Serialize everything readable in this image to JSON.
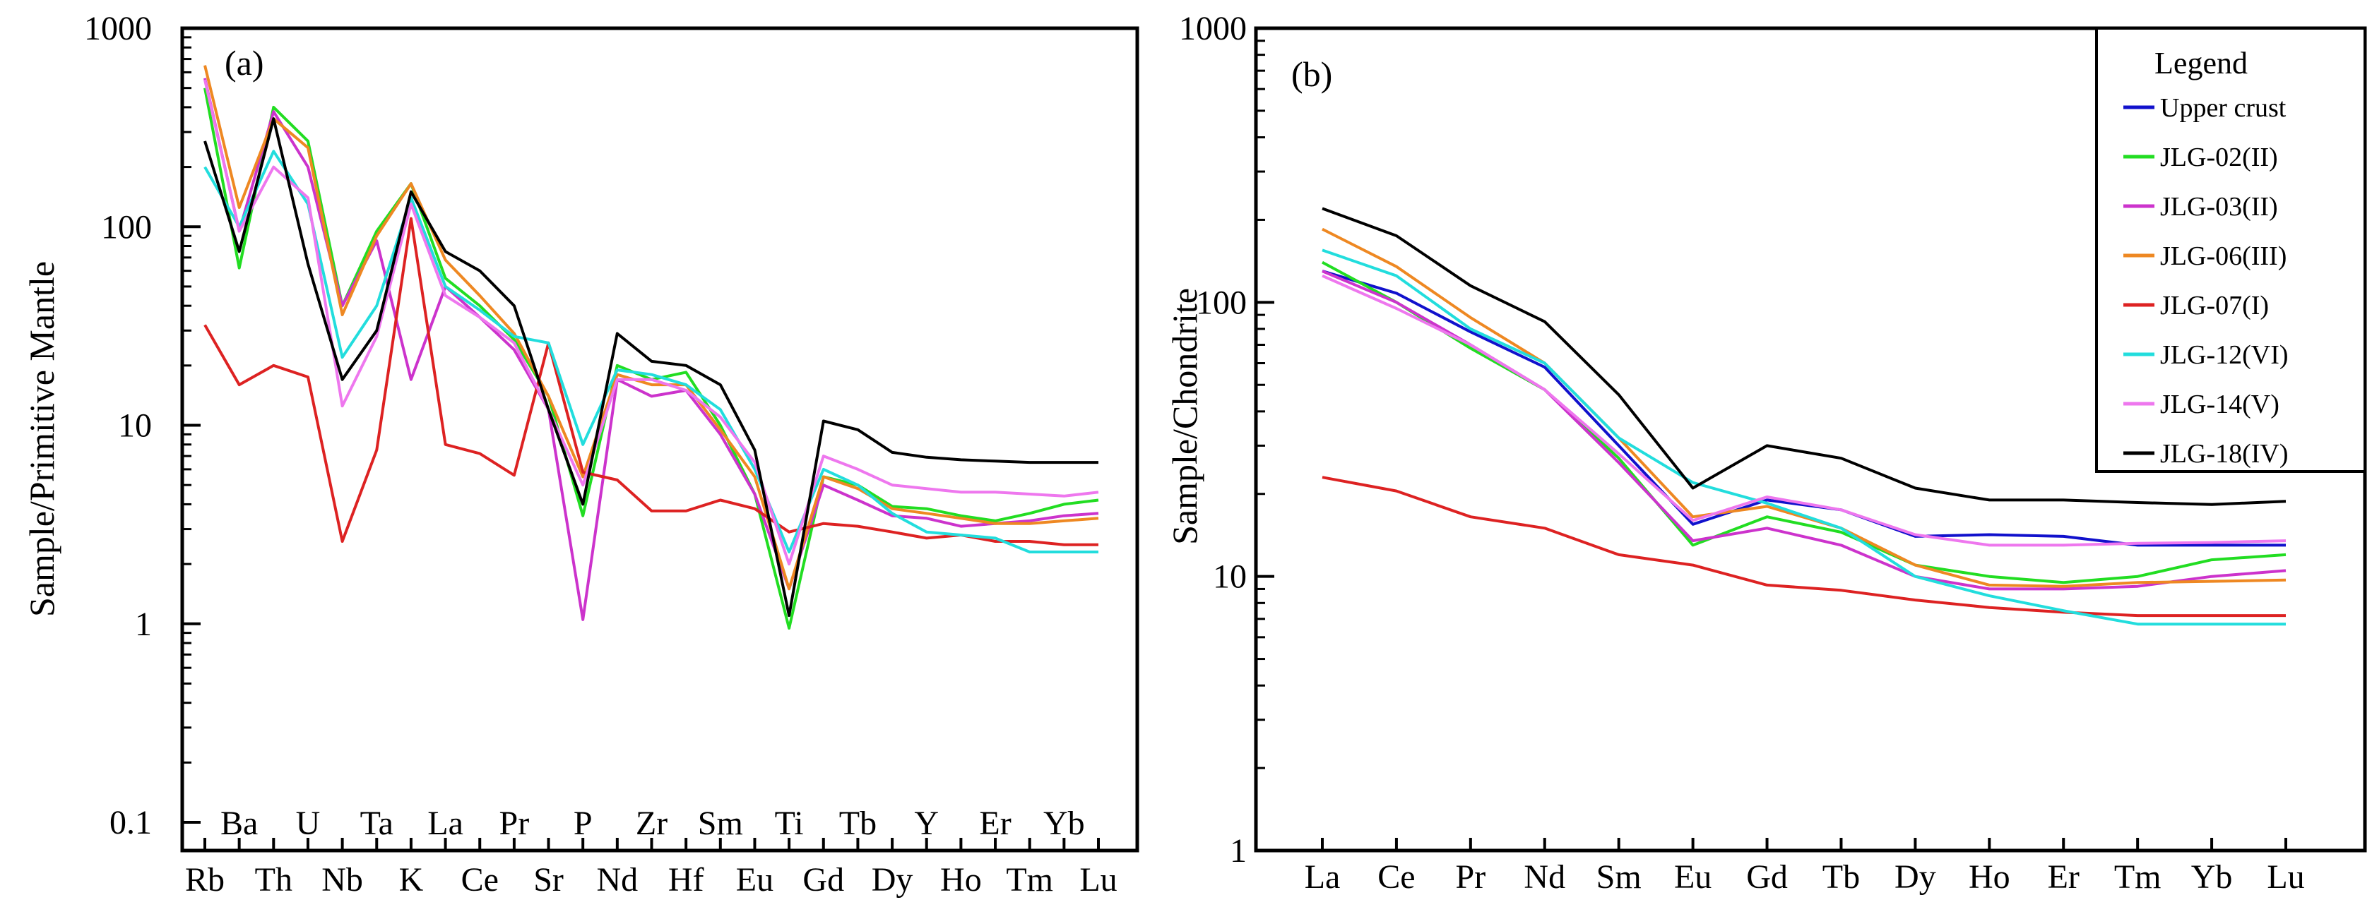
{
  "chart_data": [
    {
      "id": "a",
      "type": "line",
      "panel_label": "(a)",
      "ylabel": "Sample/Primitive Mantle",
      "yscale": "log",
      "ylim": [
        0.1,
        1000
      ],
      "yticks": [
        "0.1",
        "1",
        "10",
        "100",
        "1000"
      ],
      "categories": [
        "Rb",
        "Ba",
        "Th",
        "U",
        "Nb",
        "Ta",
        "K",
        "La",
        "Ce",
        "Pr",
        "Sr",
        "P",
        "Nd",
        "Zr",
        "Hf",
        "Sm",
        "Eu",
        "Ti",
        "Gd",
        "Tb",
        "Dy",
        "Y",
        "Ho",
        "Er",
        "Tm",
        "Yb",
        "Lu"
      ],
      "category_label_color": [
        "#000000",
        "#000000",
        "#000000",
        "#000000",
        "#000000",
        "#000000",
        "#000000",
        "#000000",
        "#000000",
        "#000000",
        "#000000",
        "#000000",
        "#000000",
        "#000000",
        "#000000",
        "#000000",
        "#000000",
        "#555555",
        "#000000",
        "#000000",
        "#000000",
        "#555555",
        "#555555",
        "#000000",
        "#000000",
        "#000000",
        "#000000"
      ],
      "series": [
        {
          "name": "JLG-02(II)",
          "color": "#22dd22",
          "values": [
            500,
            62,
            400,
            270,
            40,
            95,
            165,
            55,
            40,
            27,
            14,
            3.5,
            20,
            17,
            18.5,
            10,
            4.5,
            0.95,
            5.5,
            5,
            3.9,
            3.8,
            3.5,
            3.3,
            3.6,
            4,
            4.2
          ]
        },
        {
          "name": "JLG-03(II)",
          "color": "#cc33cc",
          "values": [
            560,
            95,
            380,
            200,
            40,
            85,
            17,
            50,
            35,
            24,
            12,
            1.05,
            17,
            14,
            15,
            9,
            4.5,
            1.5,
            5,
            4.2,
            3.5,
            3.4,
            3.1,
            3.2,
            3.3,
            3.5,
            3.6
          ]
        },
        {
          "name": "JLG-06(III)",
          "color": "#ee8822",
          "values": [
            650,
            125,
            350,
            250,
            36,
            90,
            165,
            68,
            45,
            29,
            14,
            5.5,
            18,
            16,
            16,
            9.5,
            5.5,
            1.5,
            5.5,
            4.8,
            3.8,
            3.6,
            3.4,
            3.2,
            3.2,
            3.3,
            3.4
          ]
        },
        {
          "name": "JLG-07(I)",
          "color": "#dd2222",
          "values": [
            32,
            16,
            20,
            17.5,
            2.6,
            7.5,
            110,
            8,
            7.2,
            5.6,
            26,
            5.8,
            5.3,
            3.7,
            3.7,
            4.2,
            3.8,
            2.9,
            3.2,
            3.1,
            2.9,
            2.7,
            2.8,
            2.6,
            2.6,
            2.5,
            2.5
          ]
        },
        {
          "name": "JLG-12(VI)",
          "color": "#22dddd",
          "values": [
            200,
            100,
            240,
            130,
            22,
            40,
            140,
            50,
            38,
            28,
            26,
            8,
            19,
            18,
            16,
            12,
            6,
            2.3,
            6,
            5,
            3.6,
            2.9,
            2.8,
            2.7,
            2.3,
            2.3,
            2.3
          ]
        },
        {
          "name": "JLG-14(V)",
          "color": "#ee77ee",
          "values": [
            550,
            95,
            200,
            140,
            12.5,
            28,
            130,
            45,
            35,
            26,
            12,
            5,
            17,
            17,
            15,
            11,
            6.5,
            2,
            7,
            6,
            5,
            4.8,
            4.6,
            4.6,
            4.5,
            4.4,
            4.6
          ]
        },
        {
          "name": "JLG-18(IV)",
          "color": "#000000",
          "values": [
            270,
            75,
            350,
            65,
            17,
            30,
            150,
            75,
            60,
            40,
            12,
            4,
            29,
            21,
            20,
            16,
            7.5,
            1.1,
            10.5,
            9.5,
            7.3,
            6.9,
            6.7,
            6.6,
            6.5,
            6.5,
            6.5
          ]
        }
      ]
    },
    {
      "id": "b",
      "type": "line",
      "panel_label": "(b)",
      "ylabel": "Sample/Chondrite",
      "yscale": "log",
      "ylim": [
        1,
        1000
      ],
      "yticks": [
        "1",
        "10",
        "100",
        "1000"
      ],
      "categories": [
        "La",
        "Ce",
        "Pr",
        "Nd",
        "Sm",
        "Eu",
        "Gd",
        "Tb",
        "Dy",
        "Ho",
        "Er",
        "Tm",
        "Yb",
        "Lu"
      ],
      "legend_title": "Legend",
      "legend_position": "top-right",
      "series": [
        {
          "name": "Upper crust",
          "color": "#1111cc",
          "values": [
            130,
            108,
            78,
            58,
            30,
            15.5,
            19,
            17.5,
            14,
            14.2,
            14,
            13,
            13,
            13
          ]
        },
        {
          "name": "JLG-02(II)",
          "color": "#22dd22",
          "values": [
            140,
            100,
            68,
            48,
            27,
            13,
            16.5,
            14.5,
            11,
            10,
            9.5,
            10,
            11.5,
            12
          ]
        },
        {
          "name": "JLG-03(II)",
          "color": "#cc33cc",
          "values": [
            130,
            100,
            70,
            48,
            26,
            13.5,
            15,
            13,
            10,
            9,
            9,
            9.2,
            10,
            10.5
          ]
        },
        {
          "name": "JLG-06(III)",
          "color": "#ee8822",
          "values": [
            185,
            135,
            88,
            60,
            32,
            16.5,
            18,
            15,
            11,
            9.3,
            9.2,
            9.5,
            9.6,
            9.7
          ]
        },
        {
          "name": "JLG-07(I)",
          "color": "#dd2222",
          "values": [
            23,
            20.5,
            16.5,
            15,
            12,
            11,
            9.3,
            8.9,
            8.2,
            7.7,
            7.4,
            7.2,
            7.2,
            7.2
          ]
        },
        {
          "name": "JLG-12(VI)",
          "color": "#22dddd",
          "values": [
            155,
            125,
            80,
            60,
            32,
            22,
            18.5,
            15,
            10,
            8.5,
            7.5,
            6.7,
            6.7,
            6.7
          ]
        },
        {
          "name": "JLG-14(V)",
          "color": "#ee77ee",
          "values": [
            125,
            95,
            70,
            48,
            28,
            16,
            19.5,
            17.5,
            14.2,
            13,
            13,
            13.2,
            13.3,
            13.5
          ]
        },
        {
          "name": "JLG-18(IV)",
          "color": "#000000",
          "values": [
            220,
            175,
            115,
            85,
            46,
            21,
            30,
            27,
            21,
            19,
            19,
            18.6,
            18.3,
            18.8
          ]
        }
      ]
    }
  ]
}
